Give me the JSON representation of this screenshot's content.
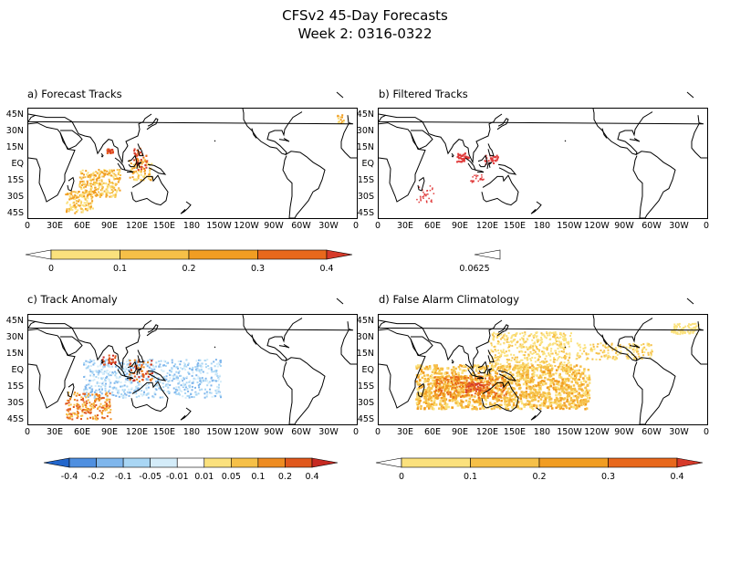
{
  "title": {
    "line1": "CFSv2 45-Day Forecasts",
    "line2": "Week 2: 0316-0322"
  },
  "lat_labels": [
    "45N",
    "30N",
    "15N",
    "EQ",
    "15S",
    "30S",
    "45S"
  ],
  "lon_labels": [
    "0",
    "30E",
    "60E",
    "90E",
    "120E",
    "150E",
    "180",
    "150W",
    "120W",
    "90W",
    "60W",
    "30W",
    "0"
  ],
  "panels": [
    {
      "id": "a",
      "title": "a) Forecast Tracks",
      "colorbar": {
        "labels": [
          "0",
          "0.1",
          "0.2",
          "0.3",
          "0.4"
        ],
        "colors": [
          "#ffffff",
          "#fbe17d",
          "#f6c048",
          "#f19d22",
          "#e8681c",
          "#d63a2a"
        ]
      }
    },
    {
      "id": "b",
      "title": "b) Filtered Tracks",
      "colorbar": {
        "labels": [
          "0.0625"
        ],
        "colors": [
          "#ffffff",
          "#e03b3b"
        ]
      }
    },
    {
      "id": "c",
      "title": "c) Track Anomaly",
      "colorbar": {
        "labels": [
          "-0.4",
          "-0.2",
          "-0.1",
          "-0.05",
          "-0.01",
          "0.01",
          "0.05",
          "0.1",
          "0.2",
          "0.4"
        ],
        "colors": [
          "#2266cc",
          "#4f8fe0",
          "#7fb6ec",
          "#a9d6f4",
          "#d4ecf9",
          "#ffffff",
          "#fbe17d",
          "#f6c048",
          "#ee8c22",
          "#e0581d",
          "#c62a22"
        ]
      }
    },
    {
      "id": "d",
      "title": "d) False Alarm Climatology",
      "colorbar": {
        "labels": [
          "0",
          "0.1",
          "0.2",
          "0.3",
          "0.4"
        ],
        "colors": [
          "#ffffff",
          "#fbe17d",
          "#f6c048",
          "#f19d22",
          "#e8681c",
          "#d63a2a"
        ]
      }
    }
  ]
}
